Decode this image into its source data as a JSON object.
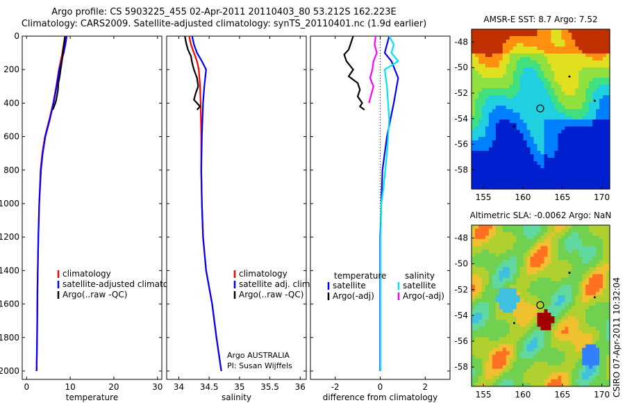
{
  "header": {
    "line1": "Argo profile: CS 5903225_455 02-Apr-2011 20110403_80 53.212S 162.223E",
    "line2": "Climatology: CARS2009. Satellite-adjusted climatology: synTS_20110401.nc (1.9d earlier)"
  },
  "credit": "CSIRO 07-Apr-2011 10:32:04",
  "colors": {
    "climatology": "#ff0000",
    "satellite": "#0000ff",
    "argo": "#000000",
    "sal_satellite": "#00e5ee",
    "sal_argo": "#ff00ff"
  },
  "chart_data": [
    {
      "type": "line",
      "id": "temperature",
      "xlabel": "temperature",
      "xlim": [
        -1,
        31
      ],
      "xticks": [
        0,
        10,
        20,
        30
      ],
      "ylim": [
        2050,
        0
      ],
      "yticks": [
        0,
        200,
        400,
        600,
        800,
        1000,
        1200,
        1400,
        1600,
        1800,
        2000
      ],
      "legend": [
        "climatology",
        "satellite-adjusted climatology",
        "Argo(..raw -QC)"
      ],
      "series": [
        {
          "name": "climatology",
          "color": "#ff0000",
          "x": [
            8.8,
            8.5,
            8.2,
            7.8,
            7.4,
            6.8,
            6.1,
            5.2,
            4.2,
            3.6,
            3.2,
            2.9,
            2.7,
            2.5,
            2.4,
            2.3
          ],
          "y": [
            0,
            50,
            100,
            150,
            200,
            300,
            400,
            500,
            600,
            700,
            800,
            1000,
            1200,
            1500,
            1800,
            2000
          ]
        },
        {
          "name": "satellite-adjusted climatology",
          "color": "#0000ff",
          "x": [
            9.2,
            8.9,
            8.5,
            8.0,
            7.5,
            6.9,
            6.2,
            5.3,
            4.3,
            3.7,
            3.3,
            2.9,
            2.7,
            2.5,
            2.4,
            2.3
          ],
          "y": [
            0,
            50,
            100,
            150,
            200,
            300,
            400,
            500,
            600,
            700,
            800,
            1000,
            1200,
            1500,
            1800,
            2000
          ]
        },
        {
          "name": "Argo(..raw -QC)",
          "color": "#000000",
          "x": [
            8.8,
            8.7,
            8.5,
            8.3,
            8.1,
            7.8,
            7.6,
            7.3,
            7.2,
            7.0,
            6.8,
            6.6,
            6.3,
            6.0
          ],
          "y": [
            0,
            30,
            60,
            100,
            150,
            200,
            240,
            280,
            320,
            350,
            380,
            400,
            420,
            440
          ]
        }
      ]
    },
    {
      "type": "line",
      "id": "salinity",
      "xlabel": "salinity",
      "xlim": [
        33.8,
        36.1
      ],
      "xticks": [
        34,
        34.5,
        35,
        35.5,
        36
      ],
      "ylim": [
        2050,
        0
      ],
      "legend": [
        "climatology",
        "satellite adj. clim.",
        "Argo(..raw -QC)"
      ],
      "annotation": [
        "Argo AUSTRALIA",
        "PI: Susan Wijffels"
      ],
      "series": [
        {
          "name": "climatology",
          "color": "#ff0000",
          "x": [
            34.17,
            34.2,
            34.25,
            34.3,
            34.33,
            34.35,
            34.36,
            34.37,
            34.37,
            34.38,
            34.4,
            34.45,
            34.55,
            34.62,
            34.7
          ],
          "y": [
            0,
            50,
            100,
            150,
            200,
            300,
            400,
            600,
            800,
            1000,
            1200,
            1400,
            1600,
            1800,
            2000
          ]
        },
        {
          "name": "satellite adj. clim.",
          "color": "#0000ff",
          "x": [
            34.22,
            34.25,
            34.3,
            34.38,
            34.45,
            34.42,
            34.4,
            34.38,
            34.37,
            34.38,
            34.4,
            34.45,
            34.55,
            34.62,
            34.7
          ],
          "y": [
            0,
            50,
            100,
            150,
            200,
            300,
            400,
            600,
            800,
            1000,
            1200,
            1400,
            1600,
            1800,
            2000
          ]
        },
        {
          "name": "Argo(..raw -QC)",
          "color": "#000000",
          "x": [
            34.1,
            34.12,
            34.15,
            34.2,
            34.22,
            34.25,
            34.3,
            34.32,
            34.28,
            34.25,
            34.3,
            34.35,
            34.3
          ],
          "y": [
            0,
            40,
            80,
            120,
            160,
            200,
            250,
            300,
            340,
            380,
            400,
            420,
            440
          ]
        }
      ]
    },
    {
      "type": "line",
      "id": "difference",
      "xlabel": "difference from climatology",
      "xlim": [
        -3.1,
        3.1
      ],
      "xticks": [
        -2,
        0,
        2
      ],
      "ylim": [
        2050,
        0
      ],
      "legend_headers": [
        "temperature",
        "salinity"
      ],
      "legend": [
        "satellite",
        "Argo(-adj)",
        "satellite",
        "Argo(-adj)"
      ],
      "series": [
        {
          "name": "satellite",
          "group": "temperature",
          "color": "#0000ff",
          "x": [
            0.4,
            0.3,
            0.2,
            0.5,
            0.8,
            0.6,
            0.3,
            0.1,
            0.05,
            0.0,
            0.0,
            0.0
          ],
          "y": [
            0,
            50,
            100,
            150,
            250,
            400,
            600,
            800,
            1000,
            1200,
            1600,
            2000
          ]
        },
        {
          "name": "Argo(-adj)",
          "group": "temperature",
          "color": "#000000",
          "x": [
            -1.2,
            -1.3,
            -1.4,
            -1.6,
            -1.5,
            -1.2,
            -1.4,
            -1.0,
            -0.9,
            -1.0,
            -0.8,
            -0.9,
            -0.7
          ],
          "y": [
            0,
            40,
            80,
            110,
            150,
            200,
            240,
            280,
            320,
            360,
            400,
            420,
            440
          ]
        },
        {
          "name": "satellite",
          "group": "salinity",
          "color": "#00e5ee",
          "x": [
            0.4,
            0.6,
            0.5,
            0.8,
            0.2,
            0.3,
            0.4,
            0.3,
            0.15,
            0.05,
            0.02,
            0.02,
            0.02
          ],
          "y": [
            0,
            50,
            100,
            150,
            200,
            300,
            500,
            700,
            900,
            1000,
            1200,
            1600,
            2000
          ]
        },
        {
          "name": "Argo(-adj)",
          "group": "salinity",
          "color": "#ff00ff",
          "x": [
            -0.2,
            -0.25,
            -0.15,
            -0.3,
            -0.35,
            -0.45,
            -0.3,
            -0.4,
            -0.5
          ],
          "y": [
            0,
            50,
            100,
            150,
            200,
            250,
            300,
            350,
            400
          ]
        }
      ]
    },
    {
      "type": "heatmap",
      "id": "sst-map",
      "title": "AMSR-E SST: 8.7 Argo: 7.52",
      "xlim": [
        153.5,
        171
      ],
      "xticks": [
        155,
        160,
        165,
        170
      ],
      "ylim": [
        -59.5,
        -47
      ],
      "yticks": [
        -48,
        -50,
        -52,
        -54,
        -56,
        -58
      ],
      "float_position": {
        "lon": 162.2,
        "lat": -53.2
      }
    },
    {
      "type": "heatmap",
      "id": "sla-map",
      "title": "Altimetric SLA: -0.0062 Argo: NaN",
      "xlim": [
        153.5,
        171
      ],
      "xticks": [
        155,
        160,
        165,
        170
      ],
      "ylim": [
        -59.5,
        -47
      ],
      "yticks": [
        -48,
        -50,
        -52,
        -54,
        -56,
        -58
      ],
      "float_position": {
        "lon": 162.2,
        "lat": -53.2
      }
    }
  ]
}
